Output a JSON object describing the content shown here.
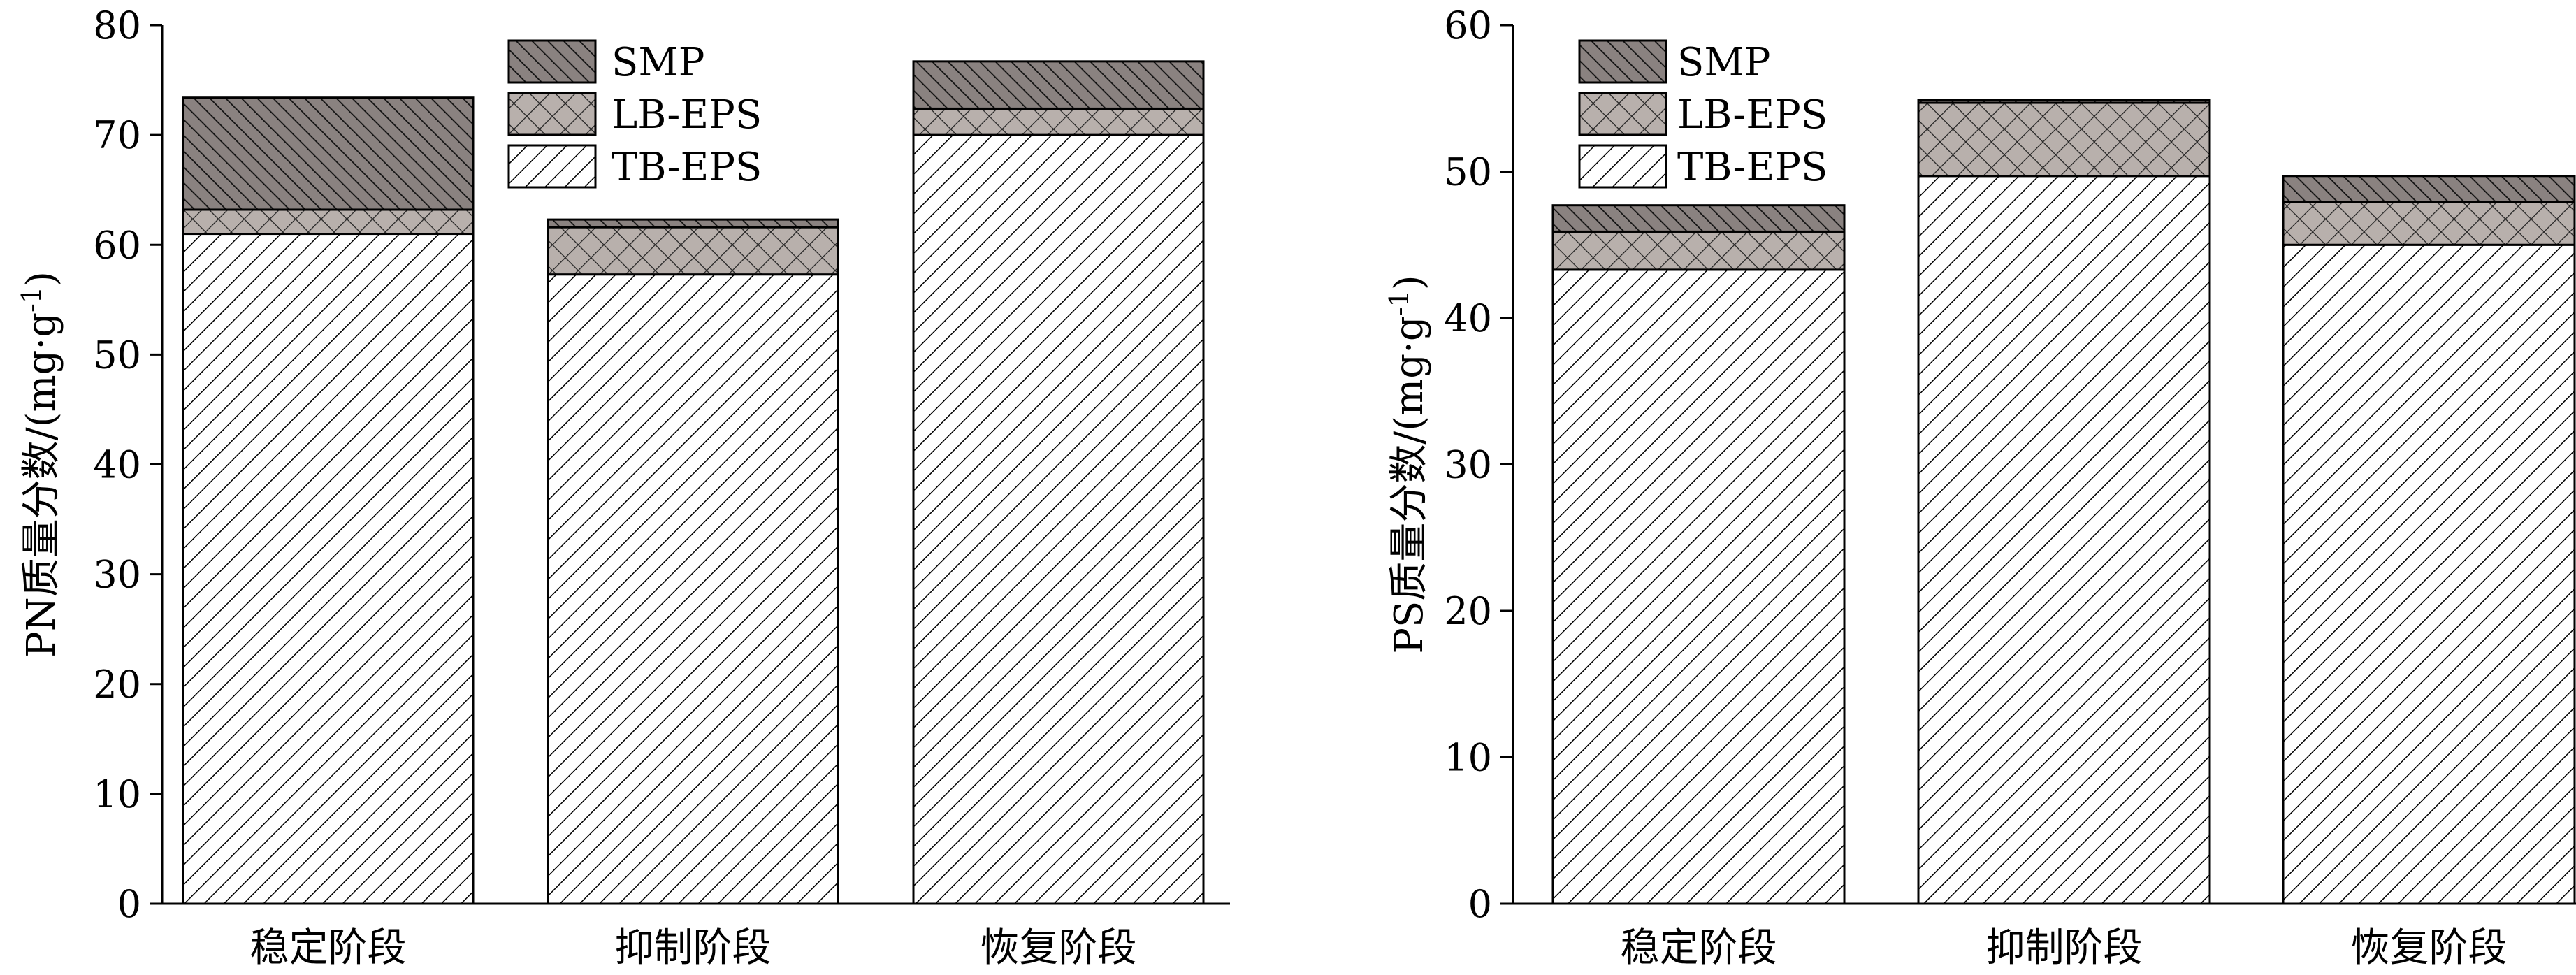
{
  "chart_data": [
    {
      "type": "bar",
      "stacked": true,
      "categories": [
        "稳定阶段",
        "抑制阶段",
        "恢复阶段"
      ],
      "series": [
        {
          "name": "TB-EPS",
          "values": [
            61.0,
            57.3,
            70.0
          ]
        },
        {
          "name": "LB-EPS",
          "values": [
            2.2,
            4.3,
            2.4
          ]
        },
        {
          "name": "SMP",
          "values": [
            10.2,
            0.7,
            4.3
          ]
        }
      ],
      "ylabel": {
        "prefix": "PN质量分数/(mg·g",
        "sup": "-1",
        "suffix": ")"
      },
      "ylim": [
        0,
        80
      ],
      "yticks": [
        "0",
        "10",
        "20",
        "30",
        "40",
        "50",
        "60",
        "70",
        "80"
      ],
      "legend": "top-center"
    },
    {
      "type": "bar",
      "stacked": true,
      "categories": [
        "稳定阶段",
        "抑制阶段",
        "恢复阶段"
      ],
      "series": [
        {
          "name": "TB-EPS",
          "values": [
            43.3,
            49.7,
            45.0
          ]
        },
        {
          "name": "LB-EPS",
          "values": [
            2.6,
            5.0,
            2.9
          ]
        },
        {
          "name": "SMP",
          "values": [
            1.8,
            0.2,
            1.8
          ]
        }
      ],
      "ylabel": {
        "prefix": "PS质量分数/(mg·g",
        "sup": "-1",
        "suffix": ")"
      },
      "ylim": [
        0,
        60
      ],
      "yticks": [
        "0",
        "10",
        "20",
        "30",
        "40",
        "50",
        "60"
      ],
      "legend": "top-left"
    }
  ]
}
